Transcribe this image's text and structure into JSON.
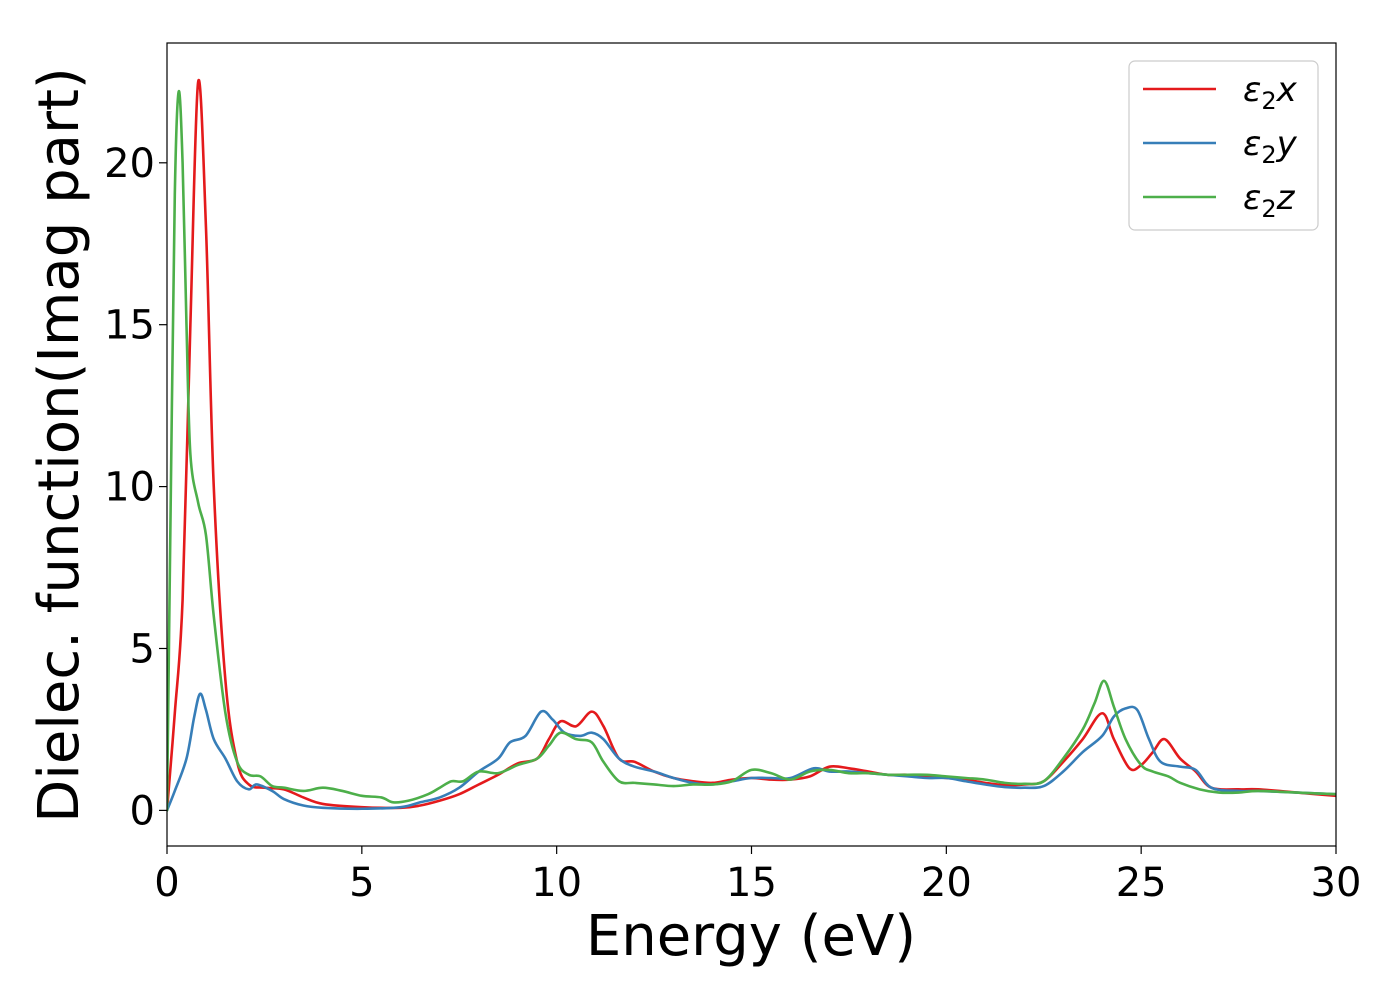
{
  "chart_data": {
    "type": "line",
    "xlabel": "Energy (eV)",
    "ylabel": "Dielec. function(Imag part)",
    "xlim": [
      0,
      30
    ],
    "ylim": [
      -1.1,
      23.7
    ],
    "xticks": [
      0,
      5,
      10,
      15,
      20,
      25,
      30
    ],
    "yticks": [
      0,
      5,
      10,
      15,
      20
    ],
    "grid": false,
    "legend_position": "top-right",
    "series": [
      {
        "name": "ε₂x",
        "legend": {
          "base": "ε",
          "sub": "2",
          "tail": "x"
        },
        "color": "#e41a1c",
        "points": [
          [
            0,
            0
          ],
          [
            0.2,
            3
          ],
          [
            0.4,
            6.5
          ],
          [
            0.6,
            15
          ],
          [
            0.8,
            22.5
          ],
          [
            1.0,
            18
          ],
          [
            1.2,
            10
          ],
          [
            1.5,
            4
          ],
          [
            1.8,
            1.5
          ],
          [
            2.1,
            0.8
          ],
          [
            2.5,
            0.7
          ],
          [
            3.0,
            0.65
          ],
          [
            3.5,
            0.4
          ],
          [
            4,
            0.2
          ],
          [
            5,
            0.1
          ],
          [
            6,
            0.08
          ],
          [
            6.5,
            0.15
          ],
          [
            7,
            0.3
          ],
          [
            7.5,
            0.5
          ],
          [
            8,
            0.8
          ],
          [
            8.5,
            1.1
          ],
          [
            9,
            1.45
          ],
          [
            9.5,
            1.6
          ],
          [
            9.8,
            2.2
          ],
          [
            10.1,
            2.75
          ],
          [
            10.5,
            2.6
          ],
          [
            10.9,
            3.05
          ],
          [
            11.2,
            2.6
          ],
          [
            11.6,
            1.6
          ],
          [
            12,
            1.5
          ],
          [
            12.5,
            1.2
          ],
          [
            13,
            1.0
          ],
          [
            13.5,
            0.9
          ],
          [
            14,
            0.85
          ],
          [
            14.5,
            0.95
          ],
          [
            15,
            1.0
          ],
          [
            15.5,
            0.95
          ],
          [
            16,
            0.95
          ],
          [
            16.5,
            1.05
          ],
          [
            17,
            1.35
          ],
          [
            17.5,
            1.3
          ],
          [
            18,
            1.2
          ],
          [
            18.5,
            1.1
          ],
          [
            19,
            1.1
          ],
          [
            19.5,
            1.05
          ],
          [
            20,
            1.0
          ],
          [
            20.5,
            0.95
          ],
          [
            21,
            0.85
          ],
          [
            21.5,
            0.78
          ],
          [
            22,
            0.8
          ],
          [
            22.5,
            0.9
          ],
          [
            23,
            1.5
          ],
          [
            23.5,
            2.2
          ],
          [
            24,
            3.0
          ],
          [
            24.3,
            2.2
          ],
          [
            24.7,
            1.3
          ],
          [
            25,
            1.4
          ],
          [
            25.3,
            1.8
          ],
          [
            25.6,
            2.2
          ],
          [
            26,
            1.6
          ],
          [
            26.4,
            1.2
          ],
          [
            26.8,
            0.7
          ],
          [
            27.5,
            0.65
          ],
          [
            28,
            0.65
          ],
          [
            29,
            0.55
          ],
          [
            30,
            0.45
          ]
        ]
      },
      {
        "name": "ε₂y",
        "legend": {
          "base": "ε",
          "sub": "2",
          "tail": "y"
        },
        "color": "#377eb8",
        "points": [
          [
            0,
            0
          ],
          [
            0.2,
            0.6
          ],
          [
            0.5,
            1.6
          ],
          [
            0.7,
            2.9
          ],
          [
            0.85,
            3.6
          ],
          [
            1.0,
            3.1
          ],
          [
            1.2,
            2.2
          ],
          [
            1.5,
            1.6
          ],
          [
            1.8,
            0.9
          ],
          [
            2.1,
            0.65
          ],
          [
            2.3,
            0.8
          ],
          [
            2.7,
            0.6
          ],
          [
            3.0,
            0.35
          ],
          [
            3.5,
            0.15
          ],
          [
            4,
            0.08
          ],
          [
            5,
            0.05
          ],
          [
            6,
            0.1
          ],
          [
            6.5,
            0.25
          ],
          [
            7,
            0.4
          ],
          [
            7.5,
            0.7
          ],
          [
            8,
            1.2
          ],
          [
            8.5,
            1.6
          ],
          [
            8.8,
            2.1
          ],
          [
            9.2,
            2.3
          ],
          [
            9.6,
            3.05
          ],
          [
            9.9,
            2.8
          ],
          [
            10.2,
            2.4
          ],
          [
            10.6,
            2.3
          ],
          [
            10.9,
            2.4
          ],
          [
            11.2,
            2.2
          ],
          [
            11.6,
            1.6
          ],
          [
            12,
            1.35
          ],
          [
            12.5,
            1.2
          ],
          [
            13,
            1.0
          ],
          [
            13.5,
            0.85
          ],
          [
            14,
            0.8
          ],
          [
            14.5,
            0.9
          ],
          [
            15,
            1.0
          ],
          [
            15.5,
            1.0
          ],
          [
            16,
            1.0
          ],
          [
            16.6,
            1.3
          ],
          [
            17,
            1.2
          ],
          [
            17.5,
            1.2
          ],
          [
            18,
            1.15
          ],
          [
            18.5,
            1.1
          ],
          [
            19,
            1.05
          ],
          [
            19.5,
            1.0
          ],
          [
            20,
            1.0
          ],
          [
            20.5,
            0.9
          ],
          [
            21,
            0.8
          ],
          [
            21.5,
            0.72
          ],
          [
            22,
            0.7
          ],
          [
            22.5,
            0.75
          ],
          [
            23,
            1.2
          ],
          [
            23.5,
            1.8
          ],
          [
            24,
            2.3
          ],
          [
            24.3,
            2.9
          ],
          [
            24.6,
            3.15
          ],
          [
            24.9,
            3.1
          ],
          [
            25.2,
            2.2
          ],
          [
            25.5,
            1.5
          ],
          [
            26,
            1.35
          ],
          [
            26.4,
            1.25
          ],
          [
            26.8,
            0.7
          ],
          [
            27.5,
            0.6
          ],
          [
            28,
            0.6
          ],
          [
            29,
            0.55
          ],
          [
            30,
            0.5
          ]
        ]
      },
      {
        "name": "ε₂z",
        "legend": {
          "base": "ε",
          "sub": "2",
          "tail": "z"
        },
        "color": "#4daf4a",
        "points": [
          [
            0,
            0
          ],
          [
            0.1,
            10
          ],
          [
            0.2,
            19
          ],
          [
            0.3,
            22.2
          ],
          [
            0.4,
            20
          ],
          [
            0.5,
            15
          ],
          [
            0.6,
            11
          ],
          [
            0.8,
            9.5
          ],
          [
            1.0,
            8.5
          ],
          [
            1.2,
            6
          ],
          [
            1.5,
            3
          ],
          [
            1.8,
            1.5
          ],
          [
            2.1,
            1.1
          ],
          [
            2.4,
            1.05
          ],
          [
            2.7,
            0.75
          ],
          [
            3.0,
            0.7
          ],
          [
            3.5,
            0.6
          ],
          [
            4,
            0.7
          ],
          [
            4.5,
            0.6
          ],
          [
            5,
            0.45
          ],
          [
            5.5,
            0.4
          ],
          [
            5.8,
            0.25
          ],
          [
            6.2,
            0.3
          ],
          [
            6.7,
            0.5
          ],
          [
            7,
            0.7
          ],
          [
            7.3,
            0.9
          ],
          [
            7.6,
            0.9
          ],
          [
            8,
            1.2
          ],
          [
            8.5,
            1.15
          ],
          [
            9,
            1.4
          ],
          [
            9.5,
            1.6
          ],
          [
            9.8,
            2.0
          ],
          [
            10.1,
            2.4
          ],
          [
            10.5,
            2.2
          ],
          [
            10.9,
            2.1
          ],
          [
            11.2,
            1.5
          ],
          [
            11.6,
            0.9
          ],
          [
            12,
            0.85
          ],
          [
            12.5,
            0.8
          ],
          [
            13,
            0.75
          ],
          [
            13.5,
            0.8
          ],
          [
            14,
            0.8
          ],
          [
            14.5,
            0.9
          ],
          [
            15,
            1.25
          ],
          [
            15.5,
            1.15
          ],
          [
            16,
            0.95
          ],
          [
            16.5,
            1.2
          ],
          [
            17,
            1.25
          ],
          [
            17.5,
            1.15
          ],
          [
            18,
            1.15
          ],
          [
            18.5,
            1.1
          ],
          [
            19,
            1.1
          ],
          [
            19.5,
            1.1
          ],
          [
            20,
            1.05
          ],
          [
            20.5,
            1.0
          ],
          [
            21,
            0.95
          ],
          [
            21.5,
            0.85
          ],
          [
            22,
            0.82
          ],
          [
            22.5,
            0.9
          ],
          [
            23,
            1.6
          ],
          [
            23.5,
            2.5
          ],
          [
            23.8,
            3.3
          ],
          [
            24.05,
            4.0
          ],
          [
            24.3,
            3.2
          ],
          [
            24.6,
            2.2
          ],
          [
            25,
            1.4
          ],
          [
            25.3,
            1.2
          ],
          [
            25.7,
            1.05
          ],
          [
            26,
            0.85
          ],
          [
            26.5,
            0.65
          ],
          [
            27,
            0.55
          ],
          [
            27.5,
            0.55
          ],
          [
            28,
            0.6
          ],
          [
            29,
            0.55
          ],
          [
            30,
            0.5
          ]
        ]
      }
    ]
  }
}
